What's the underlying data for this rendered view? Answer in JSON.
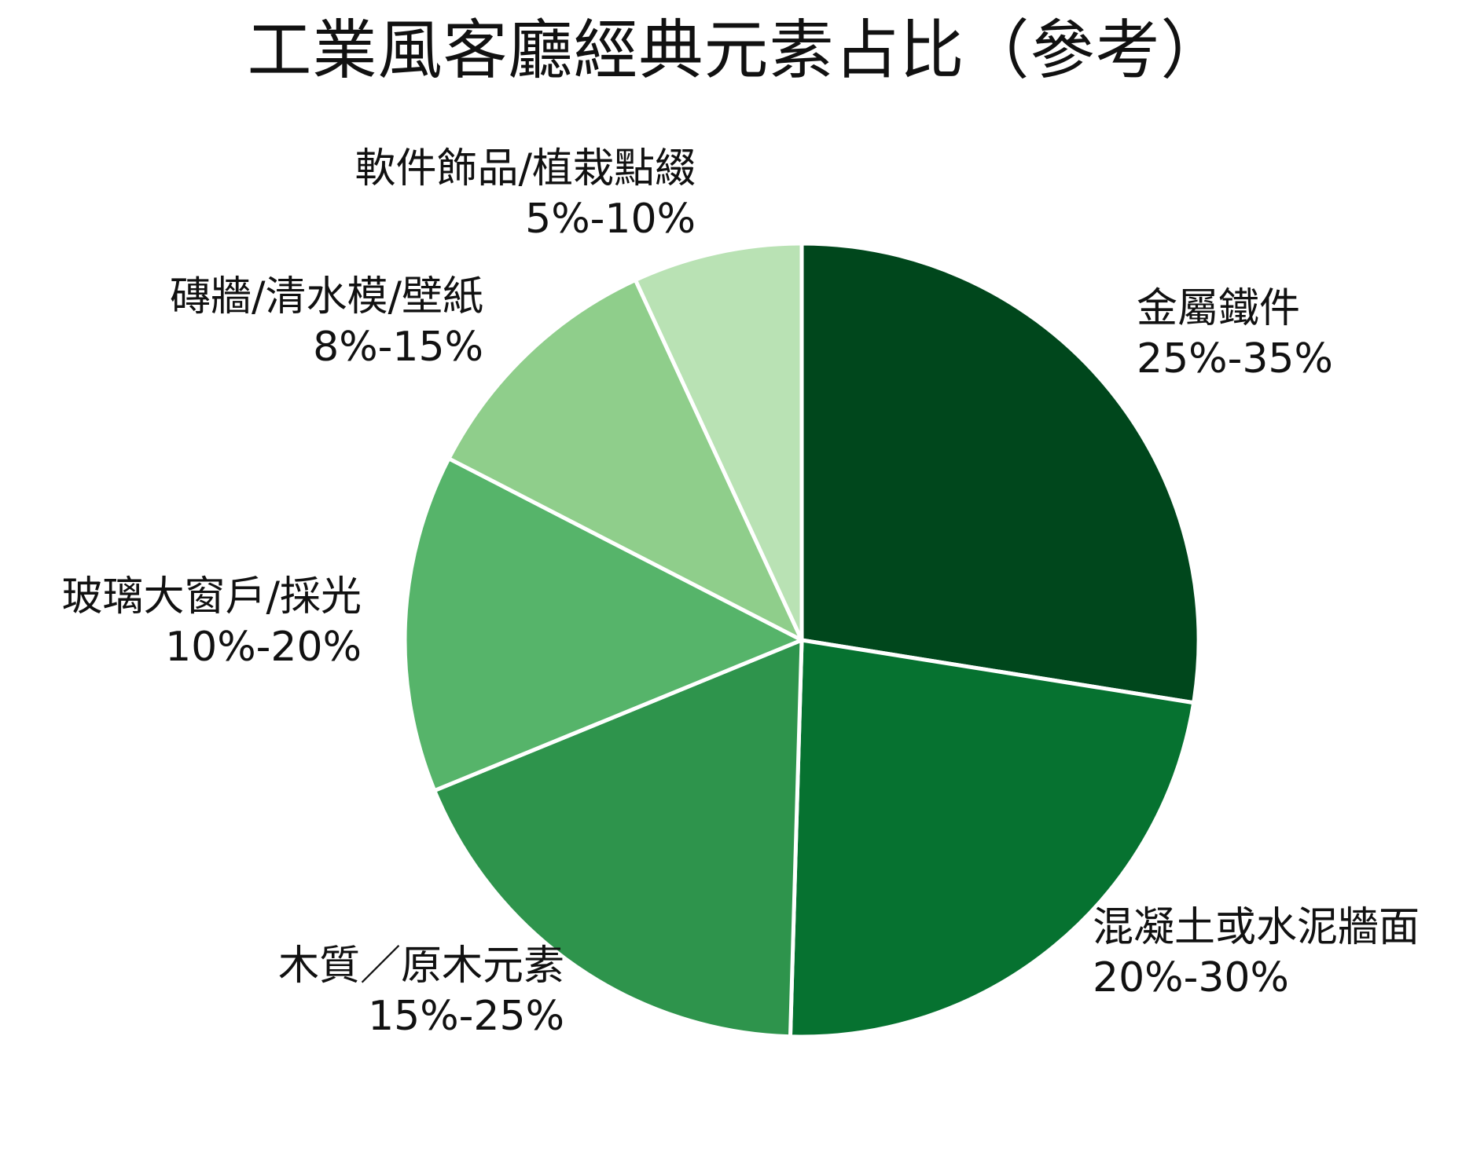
{
  "chart_data": {
    "type": "pie",
    "title": "工業風客廳經典元素占比（參考）",
    "start_angle_deg": 90,
    "direction": "clockwise",
    "slices": [
      {
        "label": "金屬鐵件",
        "range_label": "25%-35%",
        "value": 30,
        "color": "#00471c"
      },
      {
        "label": "混凝土或水泥牆面",
        "range_label": "20%-30%",
        "value": 25,
        "color": "#067230"
      },
      {
        "label": "木質／原木元素",
        "range_label": "15%-25%",
        "value": 20,
        "color": "#2e944c"
      },
      {
        "label": "玻璃大窗戶/採光",
        "range_label": "10%-20%",
        "value": 15,
        "color": "#56b46a"
      },
      {
        "label": "磚牆/清水模/壁紙",
        "range_label": "8%-15%",
        "value": 11.5,
        "color": "#8fce8b"
      },
      {
        "label": "軟件飾品/植栽點綴",
        "range_label": "5%-10%",
        "value": 7.5,
        "color": "#b9e2b4"
      }
    ]
  }
}
